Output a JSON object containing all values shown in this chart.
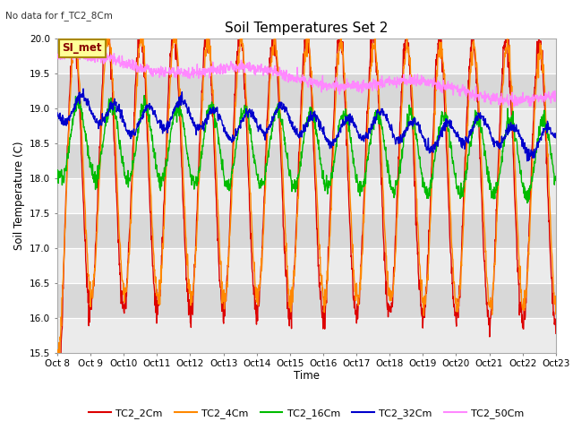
{
  "title": "Soil Temperatures Set 2",
  "subtitle": "No data for f_TC2_8Cm",
  "ylabel": "Soil Temperature (C)",
  "xlabel": "Time",
  "ylim": [
    15.5,
    20.0
  ],
  "bg_color": "#ffffff",
  "plot_bg_color": "#e8e8e8",
  "series": [
    {
      "label": "TC2_2Cm",
      "color": "#dd0000"
    },
    {
      "label": "TC2_4Cm",
      "color": "#ff8800"
    },
    {
      "label": "TC2_16Cm",
      "color": "#00bb00"
    },
    {
      "label": "TC2_32Cm",
      "color": "#0000cc"
    },
    {
      "label": "TC2_50Cm",
      "color": "#ff88ff"
    }
  ],
  "x_tick_labels": [
    "Oct 8",
    "Oct 9",
    "Oct 10",
    "Oct 11",
    "Oct 12",
    "Oct 13",
    "Oct 14",
    "Oct 15",
    "Oct 16",
    "Oct 17",
    "Oct 18",
    "Oct 19",
    "Oct 20",
    "Oct 21",
    "Oct 22",
    "Oct 23"
  ],
  "yticks": [
    15.5,
    16.0,
    16.5,
    17.0,
    17.5,
    18.0,
    18.5,
    19.0,
    19.5,
    20.0
  ],
  "annotation_box": {
    "text": "SI_met",
    "facecolor": "#ffff99",
    "edgecolor": "#aa8800"
  },
  "legend_ncol": 5,
  "band_colors": [
    "#e8e8e8",
    "#d4d4d4"
  ]
}
